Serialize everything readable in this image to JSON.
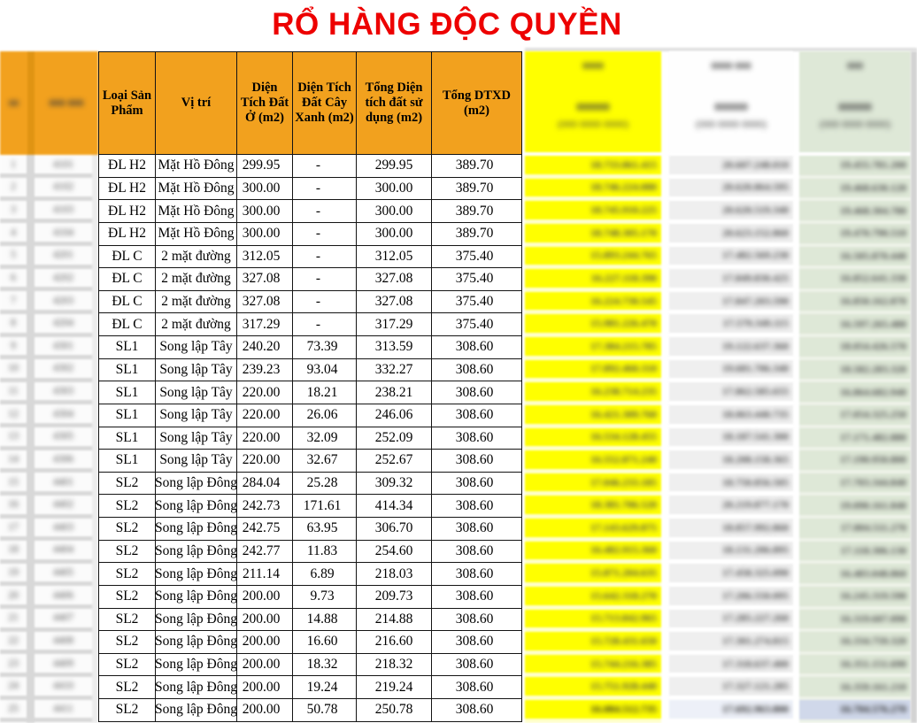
{
  "title": "RỔ HÀNG ĐỘC QUYỀN",
  "colors": {
    "title_red": "#ED0000",
    "header_orange": "#F2A11E",
    "yellow_column": "#FFFF00",
    "green_column": "#DEE8D7",
    "last_row_highlight_blue": "#D0D8EA"
  },
  "main_table": {
    "headers": [
      "Loại Sản Phẩm",
      "Vị trí",
      "Diện Tích Đất Ở (m2)",
      "Diện Tích Đất Cây Xanh (m2)",
      "Tổng Diện tích đất sử dụng (m2)",
      "Tổng DTXD (m2)"
    ],
    "rows": [
      [
        "ĐL H2",
        "Mặt Hồ Đông",
        "299.95",
        "-",
        "299.95",
        "389.70"
      ],
      [
        "ĐL H2",
        "Mặt Hồ Đông",
        "300.00",
        "-",
        "300.00",
        "389.70"
      ],
      [
        "ĐL H2",
        "Mặt Hồ Đông",
        "300.00",
        "-",
        "300.00",
        "389.70"
      ],
      [
        "ĐL H2",
        "Mặt Hồ Đông",
        "300.00",
        "-",
        "300.00",
        "389.70"
      ],
      [
        "ĐL C",
        "2 mặt đường",
        "312.05",
        "-",
        "312.05",
        "375.40"
      ],
      [
        "ĐL C",
        "2 mặt đường",
        "327.08",
        "-",
        "327.08",
        "375.40"
      ],
      [
        "ĐL C",
        "2 mặt đường",
        "327.08",
        "-",
        "327.08",
        "375.40"
      ],
      [
        "ĐL C",
        "2 mặt đường",
        "317.29",
        "-",
        "317.29",
        "375.40"
      ],
      [
        "SL1",
        "Song lập Tây",
        "240.20",
        "73.39",
        "313.59",
        "308.60"
      ],
      [
        "SL1",
        "Song lập Tây",
        "239.23",
        "93.04",
        "332.27",
        "308.60"
      ],
      [
        "SL1",
        "Song lập Tây",
        "220.00",
        "18.21",
        "238.21",
        "308.60"
      ],
      [
        "SL1",
        "Song lập Tây",
        "220.00",
        "26.06",
        "246.06",
        "308.60"
      ],
      [
        "SL1",
        "Song lập Tây",
        "220.00",
        "32.09",
        "252.09",
        "308.60"
      ],
      [
        "SL1",
        "Song lập Tây",
        "220.00",
        "32.67",
        "252.67",
        "308.60"
      ],
      [
        "SL2",
        "Song lập Đông",
        "284.04",
        "25.28",
        "309.32",
        "308.60"
      ],
      [
        "SL2",
        "Song lập Đông",
        "242.73",
        "171.61",
        "414.34",
        "308.60"
      ],
      [
        "SL2",
        "Song lập Đông",
        "242.75",
        "63.95",
        "306.70",
        "308.60"
      ],
      [
        "SL2",
        "Song lập Đông",
        "242.77",
        "11.83",
        "254.60",
        "308.60"
      ],
      [
        "SL2",
        "Song lập Đông",
        "211.14",
        "6.89",
        "218.03",
        "308.60"
      ],
      [
        "SL2",
        "Song lập Đông",
        "200.00",
        "9.73",
        "209.73",
        "308.60"
      ],
      [
        "SL2",
        "Song lập Đông",
        "200.00",
        "14.88",
        "214.88",
        "308.60"
      ],
      [
        "SL2",
        "Song lập Đông",
        "200.00",
        "16.60",
        "216.60",
        "308.60"
      ],
      [
        "SL2",
        "Song lập Đông",
        "200.00",
        "18.32",
        "218.32",
        "308.60"
      ],
      [
        "SL2",
        "Song lập Đông",
        "200.00",
        "19.24",
        "219.24",
        "308.60"
      ],
      [
        "SL2",
        "Song lập Đông",
        "200.00",
        "50.78",
        "250.78",
        "308.60"
      ]
    ]
  },
  "redacted_left": {
    "header1_masked": "00",
    "header2_masked": "000 000",
    "col1_rows_masked": [
      "1",
      "2",
      "3",
      "4",
      "5",
      "6",
      "7",
      "8",
      "9",
      "10",
      "11",
      "12",
      "13",
      "14",
      "15",
      "16",
      "17",
      "18",
      "19",
      "20",
      "21",
      "22",
      "23",
      "24",
      "25"
    ],
    "col2_rows_masked": [
      "4101",
      "4102",
      "4103",
      "4104",
      "4201",
      "4202",
      "4203",
      "4204",
      "4301",
      "4302",
      "4303",
      "4304",
      "4305",
      "4306",
      "4401",
      "4402",
      "4403",
      "4404",
      "4405",
      "4406",
      "4407",
      "4408",
      "4409",
      "4410",
      "4411"
    ]
  },
  "redacted_right": {
    "yellow": {
      "top_masked": "0000",
      "band_line1_masked": "000000",
      "band_line2_masked": "(000 0000 0000)",
      "rows_masked": [
        "18.733.861.415",
        "18.746.224.080",
        "18.745.910.225",
        "18.748.305.170",
        "15.893.244.765",
        "16.227.118.390",
        "16.224.730.545",
        "15.981.226.470",
        "17.384.215.785",
        "17.892.460.310",
        "16.238.714.235",
        "16.421.309.760",
        "16.534.128.455",
        "16.552.871.240",
        "17.046.233.185",
        "18.381.706.520",
        "17.143.629.875",
        "16.482.915.360",
        "15.871.204.635",
        "15.642.318.270",
        "15.713.842.965",
        "15.728.431.650",
        "15.744.216.385",
        "15.751.928.440",
        "16.084.512.735"
      ]
    },
    "white": {
      "top_masked": "0000 000",
      "band_line1_masked": "000000",
      "band_line2_masked": "(000 0000 0000)",
      "rows_masked": [
        "20.607.248.010",
        "20.620.864.595",
        "20.620.519.340",
        "20.623.152.860",
        "17.482.569.230",
        "17.849.830.425",
        "17.847.203.590",
        "17.579.349.115",
        "19.122.637.360",
        "19.681.706.340",
        "17.862.585.655",
        "18.063.440.735",
        "18.187.541.300",
        "18.208.158.365",
        "18.750.856.505",
        "20.219.877.170",
        "18.857.992.860",
        "18.131.206.895",
        "17.458.325.090",
        "17.206.550.095",
        "17.285.227.260",
        "17.301.274.815",
        "17.318.637.400",
        "17.327.121.285",
        "17.692.963.800"
      ]
    },
    "green": {
      "top_masked": "000",
      "band_line1_masked": "000000",
      "band_line2_masked": "(000 0000 0000)",
      "rows_masked": [
        "19.455.781.200",
        "19.468.630.120",
        "19.468.304.780",
        "19.470.790.510",
        "16.505.870.440",
        "16.852.641.330",
        "16.850.162.870",
        "16.597.265.480",
        "18.054.426.570",
        "18.582.283.320",
        "16.864.682.940",
        "17.054.325.250",
        "17.171.482.880",
        "17.190.950.800",
        "17.703.344.840",
        "19.090.161.840",
        "17.804.511.270",
        "17.118.306.130",
        "16.483.048.860",
        "16.245.319.590",
        "16.319.607.090",
        "16.334.759.320",
        "16.351.151.690",
        "16.359.161.210",
        "16.704.576.270"
      ]
    }
  }
}
